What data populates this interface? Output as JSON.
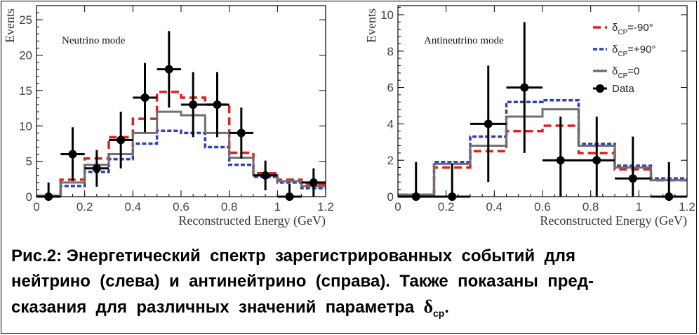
{
  "chart_data": [
    {
      "type": "histogram",
      "title": "Neutrino mode",
      "xlabel": "Reconstructed Energy (GeV)",
      "ylabel": "Events",
      "xlim": [
        0,
        1.2
      ],
      "ylim": [
        0,
        27
      ],
      "xticks": [
        0,
        0.2,
        0.4,
        0.6,
        0.8,
        1.0,
        1.2
      ],
      "xtick_labels": [
        "0",
        "0.2",
        "0.4",
        "0.6",
        "0.8",
        "1",
        "1.2"
      ],
      "yticks": [
        0,
        5,
        10,
        15,
        20,
        25
      ],
      "ytick_labels": [
        "0",
        "5",
        "10",
        "15",
        "20",
        "25"
      ],
      "bin_edges": [
        0,
        0.1,
        0.2,
        0.3,
        0.4,
        0.5,
        0.6,
        0.7,
        0.8,
        0.9,
        1.0,
        1.1,
        1.2
      ],
      "series": [
        {
          "name": "δCP=-90°",
          "style": "dashed",
          "color": "#e02020",
          "values": [
            0.1,
            2.4,
            5.4,
            8.4,
            11.0,
            14.8,
            14.0,
            13.0,
            6.2,
            3.3,
            2.4,
            1.8
          ]
        },
        {
          "name": "δCP=+90°",
          "style": "dotted",
          "color": "#3040b0",
          "values": [
            0.1,
            1.5,
            3.5,
            5.3,
            7.5,
            9.3,
            9.0,
            7.0,
            4.5,
            2.8,
            2.0,
            1.2
          ]
        },
        {
          "name": "δCP=0",
          "style": "solid",
          "color": "#707070",
          "values": [
            0.1,
            2.0,
            4.5,
            6.0,
            9.0,
            12.0,
            11.5,
            9.0,
            5.5,
            3.0,
            2.2,
            1.5
          ]
        }
      ],
      "data_points": [
        {
          "x": 0.05,
          "y": 0,
          "err": 2.0,
          "xerr": 0.05
        },
        {
          "x": 0.15,
          "y": 6,
          "err": 3.8,
          "xerr": 0.05
        },
        {
          "x": 0.25,
          "y": 4,
          "err": 2.6,
          "xerr": 0.05
        },
        {
          "x": 0.35,
          "y": 8,
          "err": 4.0,
          "xerr": 0.05
        },
        {
          "x": 0.45,
          "y": 14,
          "err": 4.9,
          "xerr": 0.05
        },
        {
          "x": 0.55,
          "y": 18,
          "err": 5.4,
          "xerr": 0.05
        },
        {
          "x": 0.65,
          "y": 13,
          "err": 4.6,
          "xerr": 0.05
        },
        {
          "x": 0.75,
          "y": 13,
          "err": 4.6,
          "xerr": 0.05
        },
        {
          "x": 0.85,
          "y": 9,
          "err": 3.6,
          "xerr": 0.05
        },
        {
          "x": 0.95,
          "y": 3,
          "err": 2.1,
          "xerr": 0.05
        },
        {
          "x": 1.05,
          "y": 0,
          "err": 1.8,
          "xerr": 0.05
        },
        {
          "x": 1.15,
          "y": 2,
          "err": 2.0,
          "xerr": 0.05
        }
      ]
    },
    {
      "type": "histogram",
      "title": "Antineutrino mode",
      "xlabel": "Reconstructed Energy (GeV)",
      "ylabel": "Events",
      "xlim": [
        0,
        1.2
      ],
      "ylim": [
        0,
        10.5
      ],
      "xticks": [
        0,
        0.2,
        0.4,
        0.6,
        0.8,
        1.0,
        1.2
      ],
      "xtick_labels": [
        "0",
        "0.2",
        "0.4",
        "0.6",
        "0.8",
        "1",
        "1.2"
      ],
      "yticks": [
        0,
        2,
        4,
        6,
        8,
        10
      ],
      "ytick_labels": [
        "0",
        "2",
        "4",
        "6",
        "8",
        "10"
      ],
      "bin_edges": [
        0,
        0.15,
        0.3,
        0.45,
        0.6,
        0.75,
        0.9,
        1.05,
        1.2
      ],
      "series": [
        {
          "name": "δCP=-90°",
          "style": "dashed",
          "color": "#e02020",
          "values": [
            0.1,
            1.6,
            2.5,
            3.6,
            3.9,
            2.4,
            1.5,
            0.9
          ]
        },
        {
          "name": "δCP=+90°",
          "style": "dotted",
          "color": "#3040b0",
          "values": [
            0.1,
            1.9,
            3.3,
            5.2,
            5.3,
            2.9,
            1.7,
            1.0
          ]
        },
        {
          "name": "δCP=0",
          "style": "solid",
          "color": "#707070",
          "values": [
            0.1,
            1.8,
            2.8,
            4.4,
            4.8,
            2.8,
            1.6,
            0.9
          ]
        }
      ],
      "data_points": [
        {
          "x": 0.075,
          "y": 0,
          "err": 1.9,
          "xerr": 0.075
        },
        {
          "x": 0.225,
          "y": 0,
          "err": 1.8,
          "xerr": 0.075
        },
        {
          "x": 0.375,
          "y": 4,
          "err": 3.2,
          "xerr": 0.075
        },
        {
          "x": 0.525,
          "y": 6,
          "err": 3.6,
          "xerr": 0.075
        },
        {
          "x": 0.675,
          "y": 2,
          "err": 2.4,
          "xerr": 0.075
        },
        {
          "x": 0.825,
          "y": 2,
          "err": 2.4,
          "xerr": 0.075
        },
        {
          "x": 0.975,
          "y": 1,
          "err": 2.3,
          "xerr": 0.075
        },
        {
          "x": 1.125,
          "y": 0,
          "err": 1.9,
          "xerr": 0.075
        }
      ],
      "legend": [
        "δCP=-90°",
        "δCP=+90°",
        "δCP=0",
        "Data"
      ],
      "legend_position": "top-right"
    }
  ],
  "legend": {
    "delta_symbol": "δ",
    "sub": "CP",
    "items": [
      {
        "suffix": "=-90°",
        "color": "#e02020"
      },
      {
        "suffix": "=+90°",
        "color": "#3040b0"
      },
      {
        "suffix": "=0",
        "color": "#707070"
      }
    ],
    "data_label": "Data"
  },
  "caption": {
    "line1": "Рис.2: Энергетический  спектр  зарегистрированных  событий  для",
    "line2": "нейтрино  (слева)  и  антинейтрино  (справа).  Также  показаны  пред-",
    "line3_prefix": "сказания  для  различных  значений  параметра  ",
    "line3_symbol": "δ",
    "line3_sub": "cp",
    "line3_suffix": "."
  }
}
